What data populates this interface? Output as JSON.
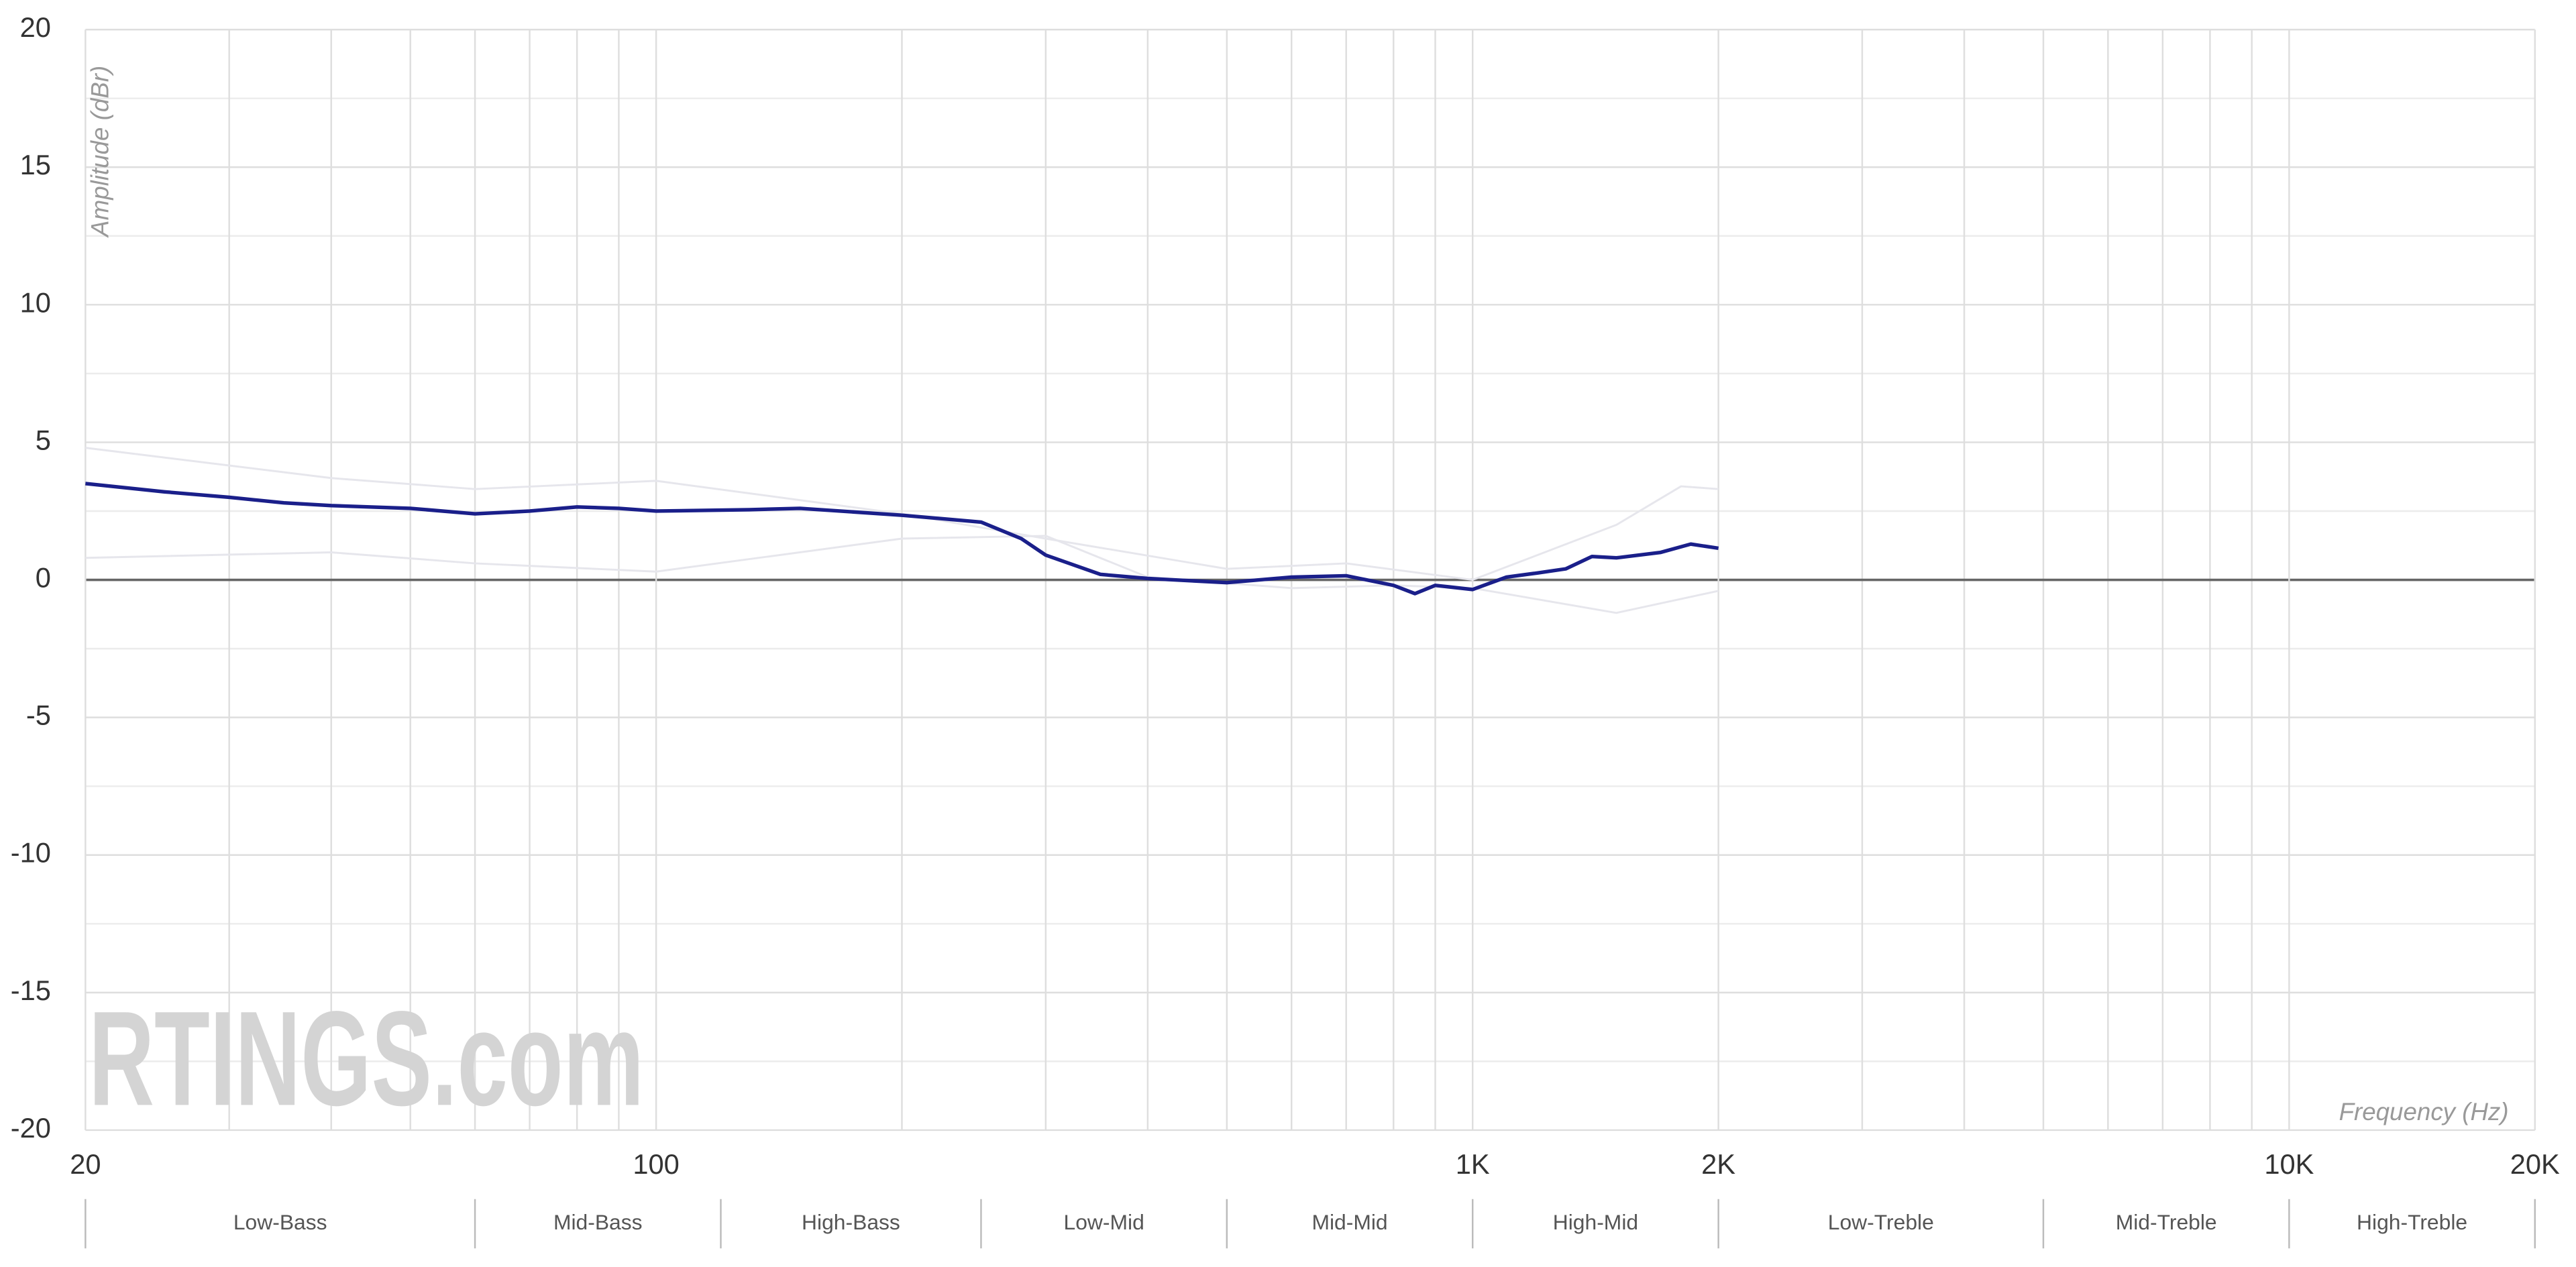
{
  "chart_data": {
    "type": "line",
    "y_label": "Amplitude (dBr)",
    "x_label": "Frequency (Hz)",
    "watermark": "RTINGS.com",
    "xscale": "log",
    "xlim": [
      20,
      20000
    ],
    "ylim": [
      -20,
      20
    ],
    "xticks": [
      20,
      100,
      {
        "value": 1000,
        "label": "1K"
      },
      {
        "value": 2000,
        "label": "2K"
      },
      {
        "value": 10000,
        "label": "10K"
      },
      {
        "value": 20000,
        "label": "20K"
      }
    ],
    "xminor": [
      30,
      40,
      50,
      60,
      70,
      80,
      90,
      200,
      300,
      400,
      500,
      600,
      700,
      800,
      900,
      3000,
      4000,
      5000,
      6000,
      7000,
      8000,
      9000
    ],
    "yticks": [
      -20,
      -15,
      -10,
      -5,
      0,
      5,
      10,
      15,
      20
    ],
    "yminor": [
      -17.5,
      -12.5,
      -7.5,
      -2.5,
      2.5,
      7.5,
      12.5,
      17.5
    ],
    "grid": true,
    "bands": {
      "names": [
        "Low-Bass",
        "Mid-Bass",
        "High-Bass",
        "Low-Mid",
        "Mid-Mid",
        "High-Mid",
        "Low-Treble",
        "Mid-Treble",
        "High-Treble"
      ],
      "edges": [
        20,
        60,
        120,
        250,
        500,
        1000,
        2000,
        5000,
        10000,
        20000
      ]
    },
    "series": [
      {
        "color": "#e6e6ec",
        "width": 1.2,
        "x": [
          20,
          40,
          60,
          100,
          200,
          300,
          500,
          700,
          1000,
          1500,
          1800,
          2000
        ],
        "values": [
          4.8,
          3.7,
          3.3,
          3.6,
          2.4,
          1.5,
          0.4,
          0.6,
          0,
          2,
          3.4,
          3.3
        ]
      },
      {
        "color": "#e6e6ec",
        "width": 1.2,
        "x": [
          20,
          40,
          60,
          100,
          200,
          300,
          400,
          600,
          800,
          1000,
          1500,
          2000
        ],
        "values": [
          0.8,
          1.0,
          0.6,
          0.3,
          1.5,
          1.6,
          0.1,
          -0.3,
          -0.2,
          -0.3,
          -1.2,
          -0.4
        ]
      },
      {
        "color": "#1a1f8a",
        "width": 2.2,
        "x": [
          20,
          25,
          30,
          35,
          40,
          50,
          60,
          70,
          80,
          90,
          100,
          130,
          150,
          200,
          250,
          280,
          300,
          350,
          400,
          500,
          600,
          700,
          800,
          850,
          900,
          1000,
          1100,
          1200,
          1300,
          1400,
          1500,
          1700,
          1850,
          2000
        ],
        "values": [
          3.5,
          3.2,
          3.0,
          2.8,
          2.7,
          2.6,
          2.4,
          2.5,
          2.65,
          2.6,
          2.5,
          2.55,
          2.6,
          2.35,
          2.1,
          1.5,
          0.9,
          0.2,
          0.05,
          -0.1,
          0.1,
          0.15,
          -0.2,
          -0.5,
          -0.2,
          -0.35,
          0.1,
          0.25,
          0.4,
          0.85,
          0.8,
          1.0,
          1.3,
          1.15
        ]
      }
    ]
  }
}
